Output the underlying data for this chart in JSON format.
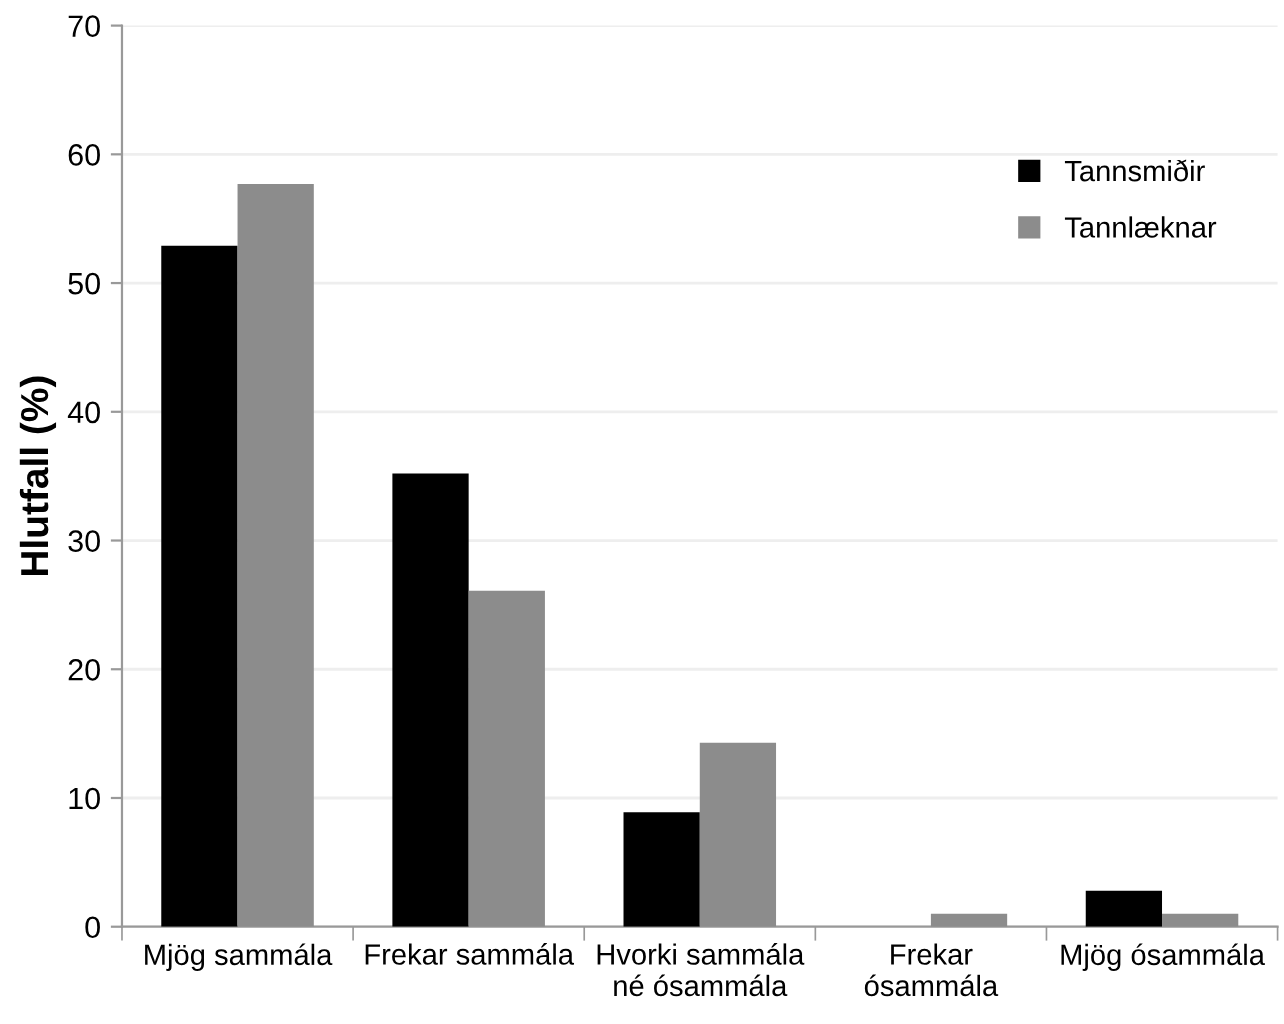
{
  "chart_data": {
    "type": "bar",
    "ylabel": "Hlutfall (%)",
    "categories": [
      "Mjög sammála",
      "Frekar sammála",
      "Hvorki sammála\nné ósammála",
      "Frekar\nósammála",
      "Mjög ósammála"
    ],
    "series": [
      {
        "name": "Tannsmiðir",
        "color": "#000000",
        "values": [
          52.9,
          35.2,
          8.9,
          0,
          2.8
        ]
      },
      {
        "name": "Tannlæknar",
        "color": "#8c8c8c",
        "values": [
          57.7,
          26.1,
          14.3,
          1.0,
          1.0
        ]
      }
    ],
    "ylim": [
      0,
      70
    ],
    "yticks": [
      0,
      10,
      20,
      30,
      40,
      50,
      60,
      70
    ],
    "grid": "y",
    "legend": "top right"
  }
}
